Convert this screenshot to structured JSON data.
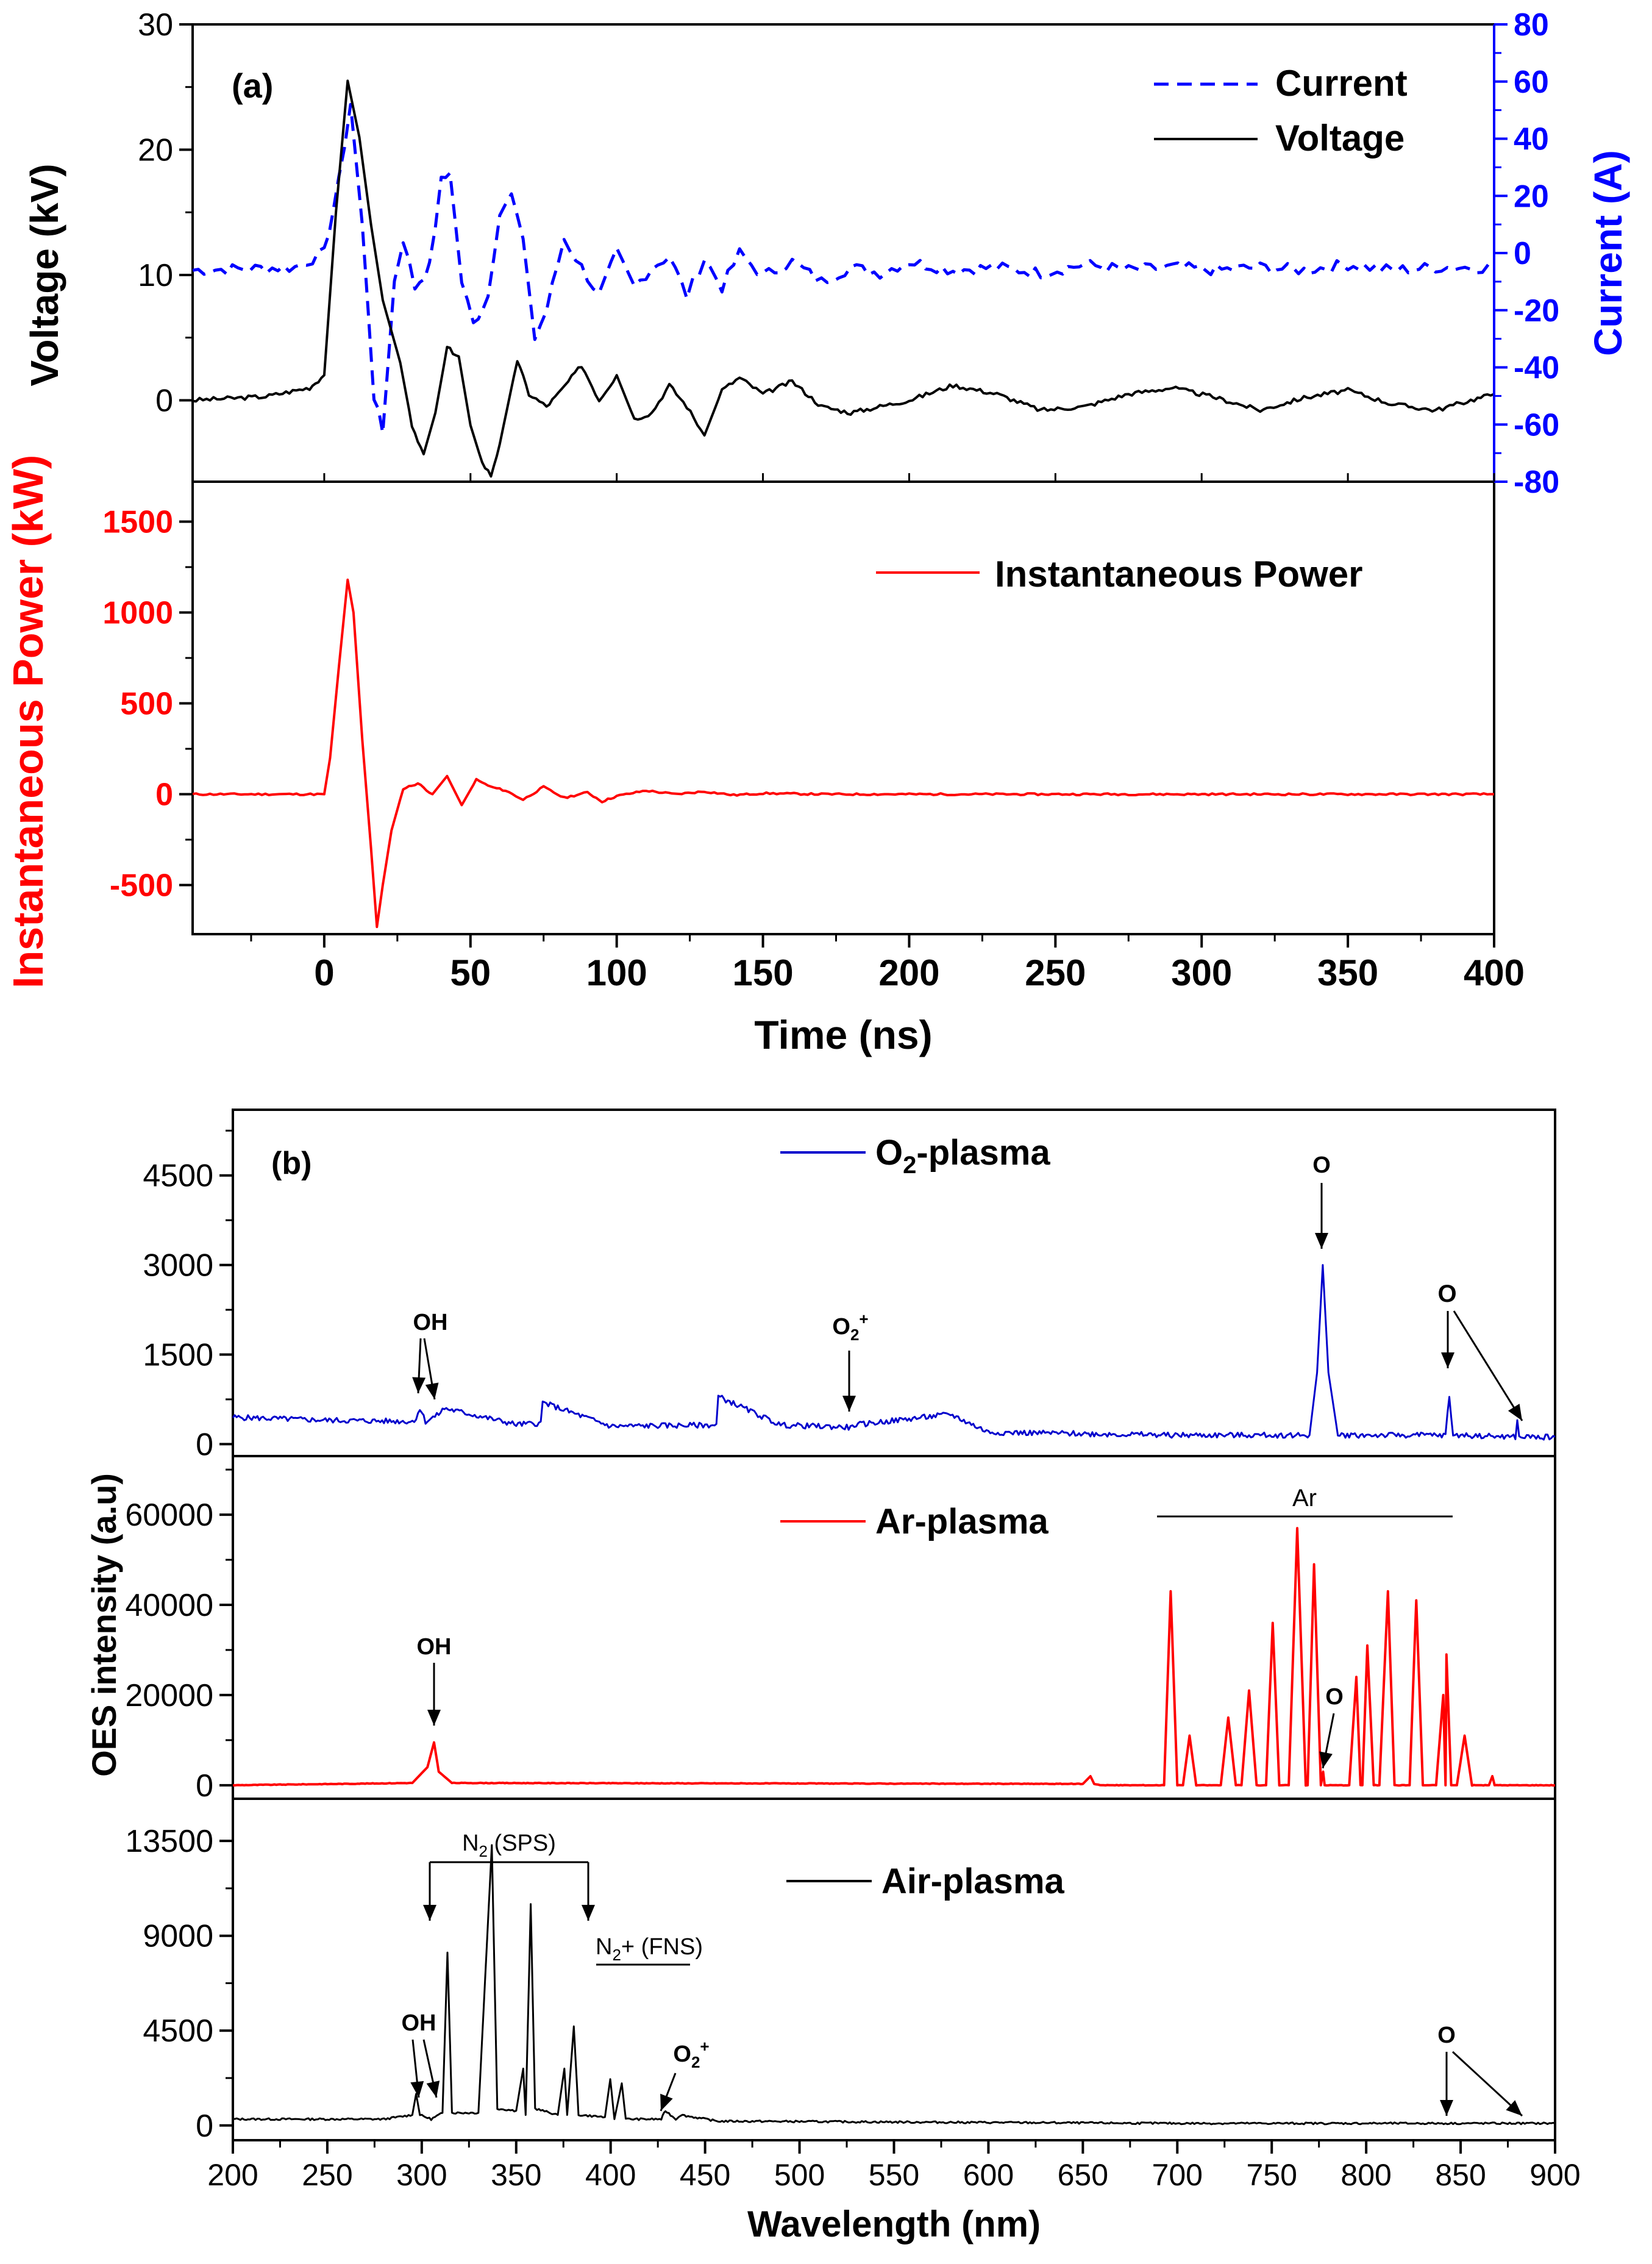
{
  "colors": {
    "voltage": "#000000",
    "current": "#0000ff",
    "power": "#ff0000",
    "o2": "#0000cc",
    "ar": "#ff0000",
    "air": "#000000"
  },
  "chart_data": [
    {
      "type": "line",
      "panel": "(a) top",
      "label": "(a)",
      "xlabel": "",
      "ylabel": "Voltage (kV)",
      "y2label": "Current (A)",
      "xlim": [
        -45,
        400
      ],
      "ylim": [
        -6.5,
        30
      ],
      "y2lim": [
        -80,
        80
      ],
      "yticks": [
        "0",
        "10",
        "20",
        "30"
      ],
      "y2ticks": [
        "-80",
        "-60",
        "-40",
        "-20",
        "0",
        "20",
        "40",
        "60",
        "80"
      ],
      "legend": [
        "Current",
        "Voltage"
      ],
      "series": [
        {
          "name": "Voltage",
          "axis": "left",
          "style": "solid",
          "x": [
            -45,
            -20,
            -5,
            0,
            4,
            8,
            12,
            16,
            20,
            26,
            30,
            34,
            38,
            42,
            46,
            50,
            54,
            57,
            60,
            66,
            70,
            76,
            80,
            88,
            94,
            100,
            106,
            112,
            118,
            124,
            130,
            136,
            142,
            150,
            160,
            170,
            180,
            190,
            200,
            215,
            230,
            245,
            260,
            275,
            290,
            305,
            320,
            335,
            350,
            365,
            380,
            392,
            400
          ],
          "y": [
            0,
            0.3,
            1,
            2,
            15,
            25.5,
            21,
            14,
            8,
            3,
            -2,
            -4.3,
            -1,
            4.2,
            3.5,
            -2,
            -5,
            -6,
            -3.5,
            3.2,
            0.5,
            -0.5,
            0.5,
            2.8,
            0,
            2,
            -1.5,
            -1,
            1.2,
            -0.5,
            -2.8,
            0.8,
            1.8,
            0.5,
            1.5,
            -0.5,
            -1,
            -0.5,
            0,
            1.2,
            0.5,
            -0.8,
            -0.5,
            0.5,
            1,
            0.2,
            -0.8,
            0.2,
            0.8,
            -0.3,
            -0.8,
            0,
            0.5
          ]
        },
        {
          "name": "Current",
          "axis": "right",
          "style": "dashed",
          "x": [
            -45,
            -10,
            0,
            5,
            9,
            13,
            17,
            20,
            24,
            27,
            31,
            36,
            40,
            43,
            47,
            51,
            56,
            60,
            64,
            68,
            72,
            76,
            82,
            88,
            94,
            100,
            106,
            112,
            118,
            124,
            130,
            136,
            142,
            150,
            160,
            170,
            180,
            190,
            200,
            215,
            230,
            245,
            260,
            275,
            290,
            305,
            320,
            335,
            350,
            365,
            380,
            400
          ],
          "y": [
            -6,
            -5,
            0,
            25,
            52,
            10,
            -50,
            -63,
            -10,
            5,
            -12,
            -5,
            25,
            28,
            -10,
            -25,
            -15,
            15,
            20,
            5,
            -30,
            -20,
            5,
            -5,
            -15,
            0,
            -12,
            -5,
            -1,
            -15,
            -2,
            -12,
            0,
            -8,
            -3,
            -10,
            -5,
            -7,
            -3,
            -6,
            -5,
            -7,
            -4,
            -6,
            -5,
            -6,
            -5,
            -6,
            -4,
            -6,
            -5,
            -5
          ]
        }
      ]
    },
    {
      "type": "line",
      "panel": "(a) bottom",
      "xlabel": "Time (ns)",
      "ylabel": "Instantaneous Power (kW)",
      "xlim": [
        -45,
        400
      ],
      "ylim": [
        -770,
        1720
      ],
      "xticks": [
        "0",
        "50",
        "100",
        "150",
        "200",
        "250",
        "300",
        "350",
        "400"
      ],
      "yticks": [
        "-500",
        "0",
        "500",
        "1000",
        "1500"
      ],
      "legend": [
        "Instantaneous Power"
      ],
      "series": [
        {
          "name": "Instantaneous Power",
          "x": [
            -45,
            0,
            2,
            5,
            8,
            10,
            13,
            16,
            18,
            20,
            23,
            27,
            32,
            37,
            42,
            47,
            52,
            57,
            62,
            68,
            75,
            82,
            90,
            95,
            100,
            110,
            120,
            130,
            140,
            150,
            170,
            200,
            250,
            300,
            350,
            400
          ],
          "y": [
            0,
            0,
            200,
            700,
            1180,
            1000,
            300,
            -300,
            -730,
            -500,
            -200,
            30,
            60,
            0,
            100,
            -60,
            80,
            40,
            20,
            -30,
            40,
            -20,
            10,
            -40,
            -10,
            20,
            0,
            15,
            -5,
            5,
            0,
            0,
            0,
            0,
            0,
            0
          ]
        }
      ]
    },
    {
      "type": "line",
      "panel": "(b) top",
      "label": "(b)",
      "xlim": [
        200,
        900
      ],
      "ylim": [
        -200,
        5600
      ],
      "yticks": [
        "0",
        "1500",
        "3000",
        "4500"
      ],
      "legend": [
        "O2-plasma"
      ],
      "series": [
        {
          "name": "O2-plasma",
          "x": [
            200,
            250,
            296,
            299,
            302,
            308,
            312,
            350,
            363,
            364,
            400,
            456,
            457,
            490,
            528,
            529,
            580,
            600,
            700,
            770,
            774,
            777,
            780,
            785,
            842,
            844,
            846,
            850,
            879,
            880,
            881,
            900
          ],
          "y": [
            450,
            400,
            380,
            600,
            380,
            480,
            600,
            330,
            350,
            700,
            300,
            320,
            800,
            320,
            280,
            320,
            500,
            200,
            150,
            150,
            1200,
            3000,
            1200,
            150,
            150,
            800,
            150,
            150,
            120,
            380,
            120,
            120
          ]
        }
      ],
      "annotations": [
        "OH",
        "O2+",
        "O",
        "O"
      ]
    },
    {
      "type": "line",
      "panel": "(b) middle",
      "ylabel": "OES intensity (a.u)",
      "xlim": [
        200,
        900
      ],
      "ylim": [
        -3000,
        73000
      ],
      "yticks": [
        "0",
        "20000",
        "40000",
        "60000"
      ],
      "legend": [
        "Ar-plasma"
      ],
      "series": [
        {
          "name": "Ar-plasma",
          "x": [
            200,
            295,
            303,
            306.5,
            309,
            316,
            650,
            654,
            656,
            660,
            693,
            696.5,
            700,
            703,
            706.5,
            710,
            723,
            727,
            731,
            734,
            738,
            742,
            747,
            750.5,
            754,
            759,
            763.5,
            768,
            769,
            772.4,
            776,
            777.2,
            778,
            791,
            794.8,
            797,
            798,
            800.6,
            804,
            807,
            811.5,
            815,
            823,
            826.5,
            830,
            837,
            840.8,
            842,
            842.5,
            845,
            848,
            852.1,
            856,
            865,
            866.8,
            868,
            900
          ],
          "y": [
            0,
            500,
            4000,
            9500,
            3000,
            500,
            300,
            2000,
            300,
            0,
            0,
            43000,
            0,
            0,
            11000,
            0,
            0,
            15000,
            0,
            0,
            21000,
            0,
            0,
            36000,
            0,
            0,
            57000,
            0,
            0,
            49000,
            0,
            3000,
            0,
            0,
            24000,
            0,
            0,
            31000,
            0,
            0,
            43000,
            0,
            0,
            41000,
            0,
            0,
            20000,
            0,
            29000,
            0,
            0,
            11000,
            0,
            0,
            2000,
            0,
            0
          ]
        }
      ],
      "annotations": [
        "Ar",
        "OH",
        "O"
      ]
    },
    {
      "type": "line",
      "panel": "(b) bottom",
      "xlabel": "Wavelength (nm)",
      "xlim": [
        200,
        900
      ],
      "ylim": [
        -700,
        15500
      ],
      "xticks": [
        "200",
        "250",
        "300",
        "350",
        "400",
        "450",
        "500",
        "550",
        "600",
        "650",
        "700",
        "750",
        "800",
        "850",
        "900"
      ],
      "yticks": [
        "0",
        "4500",
        "9000",
        "13500"
      ],
      "legend": [
        "Air-plasma"
      ],
      "series": [
        {
          "name": "Air-plasma",
          "x": [
            200,
            280,
            295,
            297,
            299,
            305,
            311,
            313.6,
            316,
            330,
            337.1,
            340,
            350,
            353.7,
            355,
            357.7,
            360,
            372,
            375.5,
            377,
            380.5,
            383,
            397,
            399.8,
            402,
            405.9,
            408,
            426.8,
            429,
            434.5,
            437,
            457,
            470,
            580,
            700,
            900
          ],
          "y": [
            300,
            300,
            500,
            1500,
            500,
            300,
            600,
            8200,
            600,
            600,
            13300,
            800,
            700,
            2700,
            500,
            10500,
            800,
            500,
            2700,
            500,
            4700,
            500,
            400,
            2200,
            300,
            2000,
            300,
            300,
            700,
            300,
            500,
            200,
            200,
            150,
            100,
            100
          ]
        }
      ],
      "annotations": [
        "N2 (SPS)",
        "N2+ (FNS)",
        "OH",
        "O2+",
        "O"
      ]
    }
  ]
}
